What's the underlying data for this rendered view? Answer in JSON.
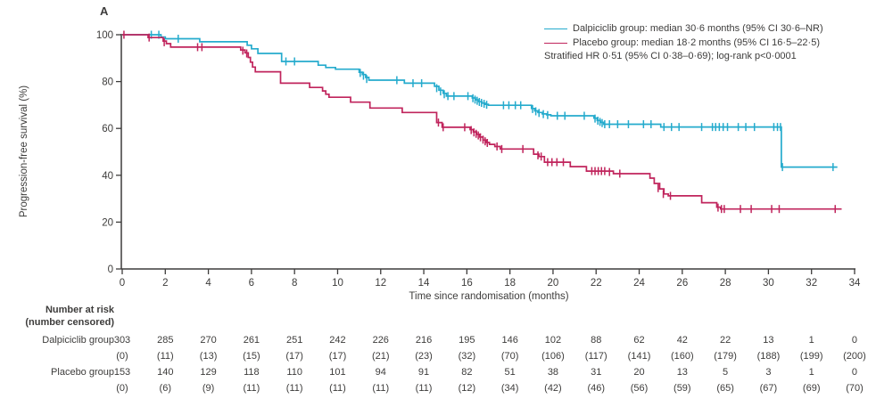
{
  "figure": {
    "panel_label": "A"
  },
  "colors": {
    "dalpiciclib": "#25abcd",
    "placebo": "#c0245c",
    "text": "#3d3c3b",
    "axis": "#3d3c3b"
  },
  "legend": {
    "entries": [
      {
        "name": "Dalpiciclib group",
        "label": "Dalpiciclib group: median 30·6 months (95% CI 30·6–NR)"
      },
      {
        "name": "Placebo group",
        "label": "Placebo group: median 18·2 months (95% CI 16·5–22·5)"
      }
    ],
    "note": "Stratified HR 0·51 (95% CI 0·38–0·69); log-rank p<0·0001"
  },
  "chart_data": {
    "type": "line",
    "subtype": "kaplan-meier-step",
    "title": "",
    "xlabel": "Time since randomisation (months)",
    "ylabel": "Progression-free survival (%)",
    "xlim": [
      0,
      34
    ],
    "ylim": [
      0,
      100
    ],
    "xticks": [
      0,
      2,
      4,
      6,
      8,
      10,
      12,
      14,
      16,
      18,
      20,
      22,
      24,
      26,
      28,
      30,
      32,
      34
    ],
    "yticks": [
      0,
      20,
      40,
      60,
      80,
      100
    ],
    "grid": false,
    "legend_position": "top-right",
    "series": [
      {
        "name": "Dalpiciclib group",
        "color_key": "dalpiciclib",
        "median_months": "30·6",
        "ci": "30·6–NR",
        "end_time": 33.2,
        "steps": [
          [
            0,
            100
          ],
          [
            1.8,
            99
          ],
          [
            2.0,
            98.3
          ],
          [
            3.6,
            97
          ],
          [
            5.8,
            95.5
          ],
          [
            6.0,
            94
          ],
          [
            6.3,
            92
          ],
          [
            7.4,
            88.6
          ],
          [
            9.1,
            87
          ],
          [
            9.45,
            86
          ],
          [
            9.9,
            85.3
          ],
          [
            11.0,
            84
          ],
          [
            11.15,
            83
          ],
          [
            11.3,
            81.8
          ],
          [
            11.45,
            80.6
          ],
          [
            13.1,
            79.3
          ],
          [
            14.5,
            78
          ],
          [
            14.7,
            76.3
          ],
          [
            14.9,
            75
          ],
          [
            15.05,
            73.8
          ],
          [
            16.25,
            73
          ],
          [
            16.4,
            72.2
          ],
          [
            16.55,
            71.4
          ],
          [
            16.7,
            70.8
          ],
          [
            16.85,
            70.3
          ],
          [
            17.0,
            69.9
          ],
          [
            19.0,
            68.5
          ],
          [
            19.15,
            67.5
          ],
          [
            19.3,
            66.8
          ],
          [
            19.5,
            66.2
          ],
          [
            19.7,
            65.8
          ],
          [
            19.9,
            65.4
          ],
          [
            21.9,
            64.4
          ],
          [
            22.05,
            63.4
          ],
          [
            22.2,
            62.6
          ],
          [
            22.35,
            61.8
          ],
          [
            25.0,
            60.6
          ],
          [
            30.6,
            43.5
          ]
        ],
        "censors": [
          [
            1.35,
            100
          ],
          [
            1.7,
            100
          ],
          [
            2.6,
            98.3
          ],
          [
            7.6,
            88.6
          ],
          [
            8.0,
            88.6
          ],
          [
            11.05,
            83.7
          ],
          [
            11.2,
            82.5
          ],
          [
            11.35,
            81.1
          ],
          [
            12.75,
            80.6
          ],
          [
            13.5,
            79.3
          ],
          [
            13.9,
            79.3
          ],
          [
            14.6,
            77.2
          ],
          [
            14.78,
            75.8
          ],
          [
            14.95,
            74.6
          ],
          [
            15.12,
            73.8
          ],
          [
            15.4,
            73.8
          ],
          [
            16.05,
            73.8
          ],
          [
            16.28,
            72.9
          ],
          [
            16.38,
            72.3
          ],
          [
            16.48,
            71.8
          ],
          [
            16.58,
            71.3
          ],
          [
            16.68,
            70.9
          ],
          [
            16.8,
            70.5
          ],
          [
            16.92,
            70.1
          ],
          [
            17.7,
            69.9
          ],
          [
            17.95,
            69.9
          ],
          [
            18.25,
            69.9
          ],
          [
            18.5,
            69.9
          ],
          [
            19.05,
            68.3
          ],
          [
            19.2,
            67.3
          ],
          [
            19.35,
            66.6
          ],
          [
            19.55,
            66.1
          ],
          [
            19.75,
            65.7
          ],
          [
            20.2,
            65.4
          ],
          [
            20.55,
            65.4
          ],
          [
            21.45,
            65.4
          ],
          [
            21.95,
            64.2
          ],
          [
            22.08,
            63.3
          ],
          [
            22.18,
            62.8
          ],
          [
            22.28,
            62.3
          ],
          [
            22.4,
            61.8
          ],
          [
            22.62,
            61.8
          ],
          [
            23.0,
            61.8
          ],
          [
            23.5,
            61.8
          ],
          [
            24.2,
            61.8
          ],
          [
            24.55,
            61.8
          ],
          [
            25.15,
            60.6
          ],
          [
            25.5,
            60.6
          ],
          [
            25.85,
            60.6
          ],
          [
            26.9,
            60.6
          ],
          [
            27.4,
            60.6
          ],
          [
            27.55,
            60.6
          ],
          [
            27.72,
            60.6
          ],
          [
            27.9,
            60.6
          ],
          [
            28.1,
            60.6
          ],
          [
            28.6,
            60.6
          ],
          [
            28.95,
            60.6
          ],
          [
            29.35,
            60.6
          ],
          [
            30.25,
            60.6
          ],
          [
            30.42,
            60.6
          ],
          [
            30.56,
            60.6
          ],
          [
            30.65,
            43.5
          ],
          [
            33.0,
            43.5
          ]
        ]
      },
      {
        "name": "Placebo group",
        "color_key": "placebo",
        "median_months": "18·2",
        "ci": "16·5–22·5",
        "end_time": 33.4,
        "steps": [
          [
            0,
            100
          ],
          [
            1.2,
            98.8
          ],
          [
            1.9,
            97.3
          ],
          [
            2.05,
            96.2
          ],
          [
            2.25,
            94.7
          ],
          [
            5.5,
            93.5
          ],
          [
            5.7,
            92.3
          ],
          [
            5.85,
            90.3
          ],
          [
            5.95,
            88.3
          ],
          [
            6.05,
            86.2
          ],
          [
            6.18,
            84.2
          ],
          [
            7.35,
            79.3
          ],
          [
            8.7,
            77.5
          ],
          [
            9.3,
            76
          ],
          [
            9.45,
            74.6
          ],
          [
            9.6,
            73.3
          ],
          [
            10.6,
            71.2
          ],
          [
            11.5,
            68.7
          ],
          [
            13.0,
            66.8
          ],
          [
            14.6,
            62.5
          ],
          [
            14.85,
            60.5
          ],
          [
            16.15,
            59.5
          ],
          [
            16.3,
            58.5
          ],
          [
            16.45,
            57.5
          ],
          [
            16.6,
            56.3
          ],
          [
            16.75,
            55
          ],
          [
            16.9,
            54
          ],
          [
            17.05,
            53.2
          ],
          [
            17.3,
            52.3
          ],
          [
            17.55,
            51.2
          ],
          [
            19.1,
            49
          ],
          [
            19.35,
            48
          ],
          [
            19.6,
            45.6
          ],
          [
            20.8,
            43.7
          ],
          [
            21.55,
            41.8
          ],
          [
            22.8,
            40.7
          ],
          [
            24.5,
            38.8
          ],
          [
            24.7,
            36.5
          ],
          [
            24.95,
            34.2
          ],
          [
            25.15,
            32
          ],
          [
            25.35,
            31.2
          ],
          [
            26.9,
            28.3
          ],
          [
            27.6,
            26.4
          ],
          [
            27.78,
            25.6
          ]
        ],
        "censors": [
          [
            0.08,
            100
          ],
          [
            1.25,
            98.8
          ],
          [
            1.95,
            96.8
          ],
          [
            3.5,
            94.7
          ],
          [
            3.7,
            94.7
          ],
          [
            5.6,
            93.2
          ],
          [
            5.78,
            92
          ],
          [
            14.68,
            62.5
          ],
          [
            14.9,
            60.5
          ],
          [
            15.9,
            60.5
          ],
          [
            16.2,
            59.3
          ],
          [
            16.33,
            58.3
          ],
          [
            16.43,
            57.7
          ],
          [
            16.53,
            57
          ],
          [
            16.63,
            56.2
          ],
          [
            16.75,
            55.2
          ],
          [
            16.85,
            54.5
          ],
          [
            16.95,
            53.8
          ],
          [
            17.4,
            52.3
          ],
          [
            17.62,
            51.2
          ],
          [
            18.6,
            51.2
          ],
          [
            19.3,
            48.5
          ],
          [
            19.45,
            48
          ],
          [
            19.75,
            45.6
          ],
          [
            19.95,
            45.6
          ],
          [
            20.18,
            45.6
          ],
          [
            20.48,
            45.6
          ],
          [
            21.8,
            41.8
          ],
          [
            21.95,
            41.8
          ],
          [
            22.1,
            41.8
          ],
          [
            22.25,
            41.8
          ],
          [
            22.4,
            41.8
          ],
          [
            22.62,
            41.4
          ],
          [
            23.1,
            40.7
          ],
          [
            24.88,
            34.5
          ],
          [
            25.12,
            32
          ],
          [
            25.45,
            31.2
          ],
          [
            27.66,
            26.2
          ],
          [
            27.82,
            25.6
          ],
          [
            27.95,
            25.6
          ],
          [
            28.7,
            25.6
          ],
          [
            29.2,
            25.6
          ],
          [
            30.15,
            25.6
          ],
          [
            30.5,
            25.6
          ],
          [
            33.1,
            25.6
          ]
        ]
      }
    ]
  },
  "risk_table": {
    "header_line1": "Number at risk",
    "header_line2": "(number censored)",
    "timepoints": [
      0,
      2,
      4,
      6,
      8,
      10,
      12,
      14,
      16,
      18,
      20,
      22,
      24,
      26,
      28,
      30,
      32,
      34
    ],
    "rows": [
      {
        "label": "Dalpiciclib group",
        "at_risk": [
          303,
          285,
          270,
          261,
          251,
          242,
          226,
          216,
          195,
          146,
          102,
          88,
          62,
          42,
          22,
          13,
          1,
          0
        ],
        "censored": [
          0,
          11,
          13,
          15,
          17,
          17,
          21,
          23,
          32,
          70,
          106,
          117,
          141,
          160,
          179,
          188,
          199,
          200
        ]
      },
      {
        "label": "Placebo group",
        "at_risk": [
          153,
          140,
          129,
          118,
          110,
          101,
          94,
          91,
          82,
          51,
          38,
          31,
          20,
          13,
          5,
          3,
          1,
          0
        ],
        "censored": [
          0,
          6,
          9,
          11,
          11,
          11,
          11,
          11,
          12,
          34,
          42,
          46,
          56,
          59,
          65,
          67,
          69,
          70
        ]
      }
    ]
  }
}
